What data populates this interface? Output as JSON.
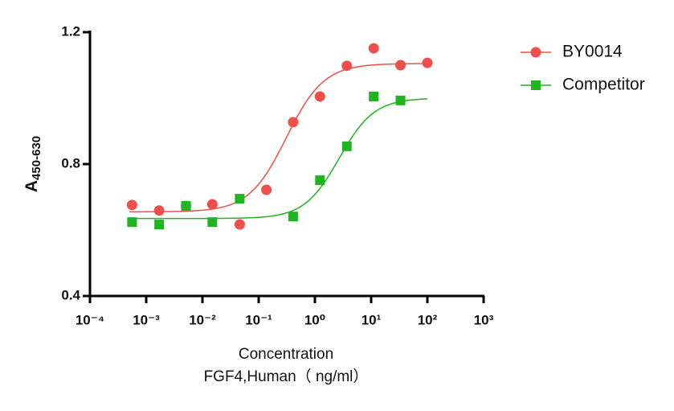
{
  "chart_data": {
    "type": "scatter",
    "y_label": "A",
    "y_label_subscript": "450-630",
    "xlabel": [
      "Concentration",
      "FGF4,Human（ ng/ml）"
    ],
    "log_x": true,
    "xlim": [
      0.0001,
      1000
    ],
    "xticks": [
      {
        "value": 0.0001,
        "label": "10⁻⁴"
      },
      {
        "value": 0.001,
        "label": "10⁻³"
      },
      {
        "value": 0.01,
        "label": "10⁻²"
      },
      {
        "value": 0.1,
        "label": "10⁻¹"
      },
      {
        "value": 1,
        "label": "10⁰"
      },
      {
        "value": 10,
        "label": "10¹"
      },
      {
        "value": 100,
        "label": "10²"
      },
      {
        "value": 1000,
        "label": "10³"
      }
    ],
    "ylim": [
      0.4,
      1.2
    ],
    "yticks": [
      0.4,
      0.8,
      1.2
    ],
    "series": [
      {
        "name": "BY0014",
        "color": "#ef4f4a",
        "marker": "circle",
        "x": [
          0.00056,
          0.0017,
          0.0051,
          0.015,
          0.046,
          0.137,
          0.41,
          1.23,
          3.7,
          11.1,
          33.3,
          100
        ],
        "values": [
          0.676,
          0.659,
          0.673,
          0.678,
          0.617,
          0.722,
          0.927,
          1.005,
          1.098,
          1.151,
          1.1,
          1.107
        ],
        "fit": {
          "bottom": 0.655,
          "top": 1.105,
          "ec50": 0.31,
          "hill": 1.3
        }
      },
      {
        "name": "Competitor",
        "color": "#1fb51f",
        "marker": "square",
        "x": [
          0.00056,
          0.0017,
          0.0051,
          0.015,
          0.046,
          0.41,
          1.23,
          3.7,
          11.1,
          33.3
        ],
        "values": [
          0.624,
          0.617,
          0.673,
          0.624,
          0.695,
          0.641,
          0.751,
          0.854,
          1.005,
          0.993
        ],
        "fit": {
          "bottom": 0.635,
          "top": 1.0,
          "ec50": 2.7,
          "hill": 1.4
        }
      }
    ]
  }
}
